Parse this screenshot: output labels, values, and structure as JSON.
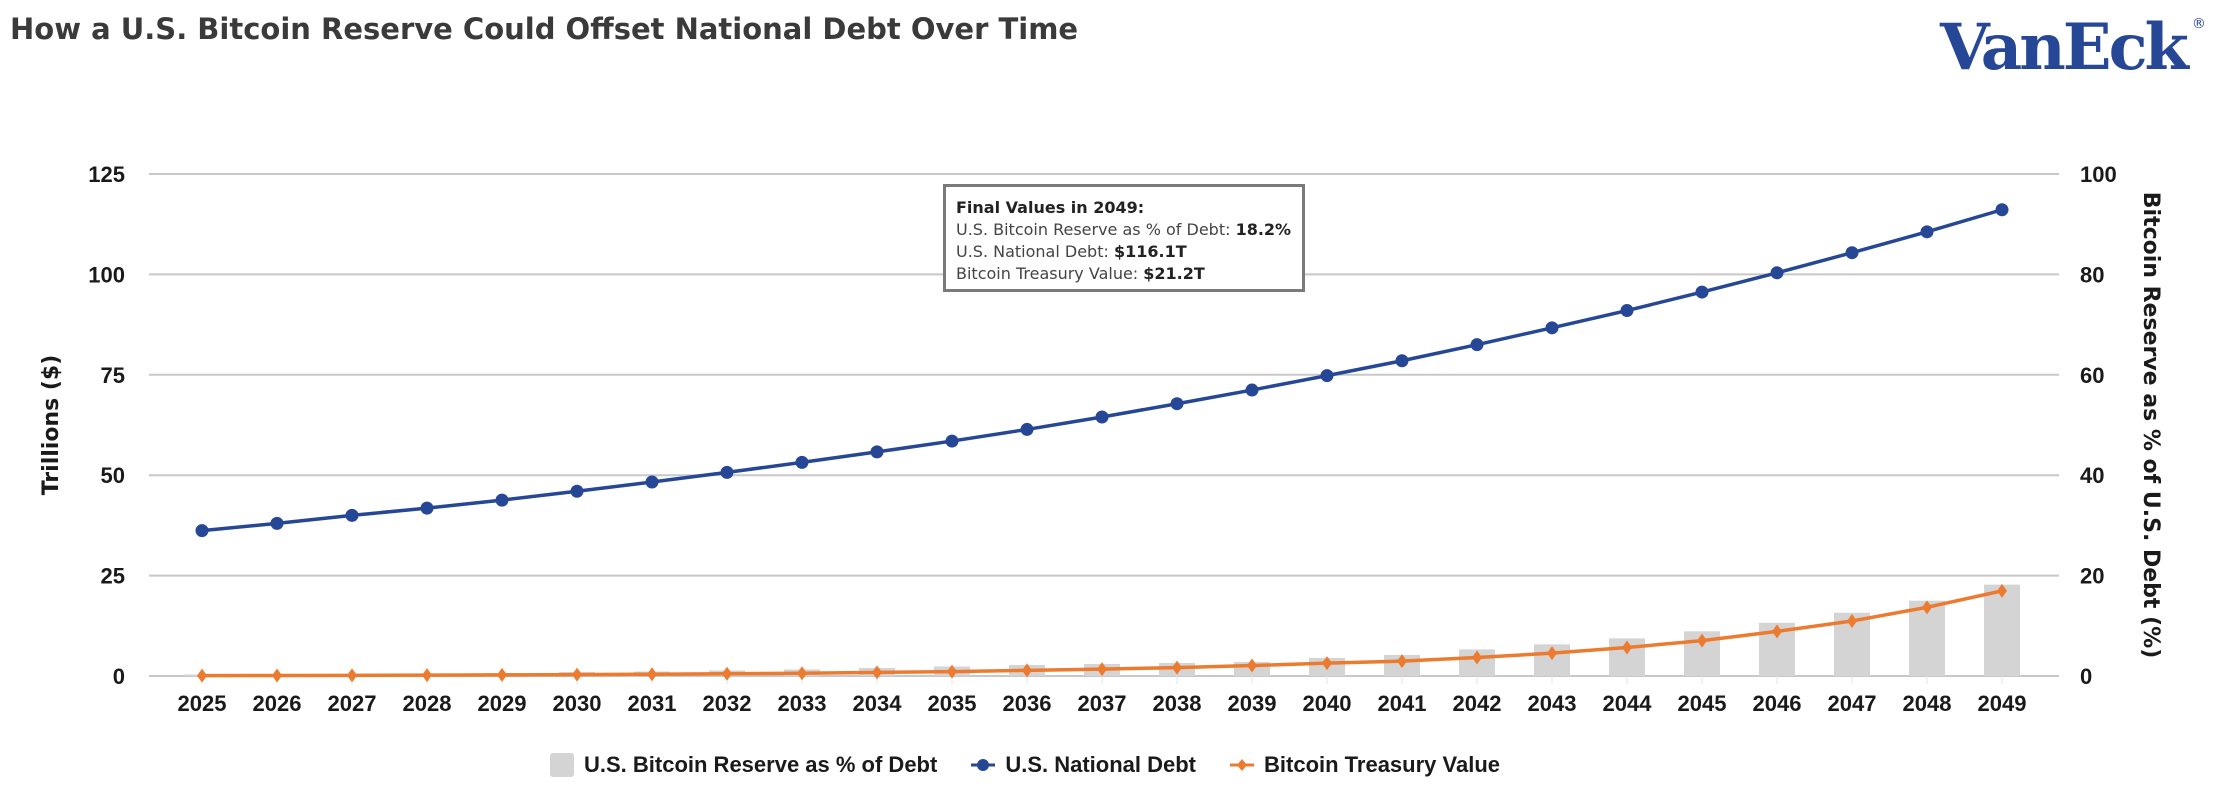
{
  "title": "How a U.S. Bitcoin Reserve Could Offset National Debt Over Time",
  "logo": {
    "text": "VanEck",
    "mark": "®",
    "color": "#264796"
  },
  "tooltip": {
    "heading": "Final Values in 2049:",
    "lines": [
      {
        "label": "U.S. Bitcoin Reserve as % of Debt: ",
        "value": "18.2%"
      },
      {
        "label": "U.S. National Debt: ",
        "value": "$116.1T"
      },
      {
        "label": "Bitcoin Treasury Value: ",
        "value": "$21.2T"
      }
    ]
  },
  "chart_data": {
    "type": "bar+line",
    "title": "How a U.S. Bitcoin Reserve Could Offset National Debt Over Time",
    "xlabel": "",
    "ylabel": "Trillions ($)",
    "y2label": "Bitcoin Reserve as % of U.S. Debt (%)",
    "ylim": [
      0,
      125
    ],
    "y2lim": [
      0,
      100
    ],
    "yticks": [
      0,
      25,
      50,
      75,
      100,
      125
    ],
    "y2ticks": [
      0,
      20,
      40,
      60,
      80,
      100
    ],
    "grid": true,
    "legend_position": "bottom",
    "categories": [
      "2025",
      "2026",
      "2027",
      "2028",
      "2029",
      "2030",
      "2031",
      "2032",
      "2033",
      "2034",
      "2035",
      "2036",
      "2037",
      "2038",
      "2039",
      "2040",
      "2041",
      "2042",
      "2043",
      "2044",
      "2045",
      "2046",
      "2047",
      "2048",
      "2049"
    ],
    "series": [
      {
        "name": "U.S. Bitcoin Reserve as % of Debt",
        "type": "bar",
        "axis": "right",
        "color": "#d4d4d4",
        "values": [
          0.3,
          0.3,
          0.4,
          0.5,
          0.6,
          0.8,
          0.9,
          1.1,
          1.3,
          1.6,
          1.9,
          2.2,
          2.4,
          2.6,
          2.8,
          3.6,
          4.2,
          5.3,
          6.3,
          7.5,
          8.9,
          10.6,
          12.6,
          15.0,
          18.2
        ]
      },
      {
        "name": "U.S. National Debt",
        "type": "line",
        "axis": "left",
        "color": "#264796",
        "marker": "circle",
        "values": [
          36.2,
          38.0,
          40.0,
          41.8,
          43.8,
          46.0,
          48.3,
          50.7,
          53.2,
          55.8,
          58.5,
          61.4,
          64.5,
          67.8,
          71.2,
          74.8,
          78.5,
          82.5,
          86.7,
          91.0,
          95.6,
          100.4,
          105.4,
          110.6,
          116.1
        ]
      },
      {
        "name": "Bitcoin Treasury Value",
        "type": "line",
        "axis": "left",
        "color": "#ec7b2f",
        "marker": "diamond",
        "values": [
          0.1,
          0.13,
          0.17,
          0.22,
          0.28,
          0.35,
          0.45,
          0.55,
          0.7,
          0.9,
          1.1,
          1.4,
          1.7,
          2.1,
          2.6,
          3.2,
          3.7,
          4.6,
          5.7,
          7.1,
          8.8,
          11.1,
          13.7,
          17.1,
          21.2
        ]
      }
    ]
  }
}
